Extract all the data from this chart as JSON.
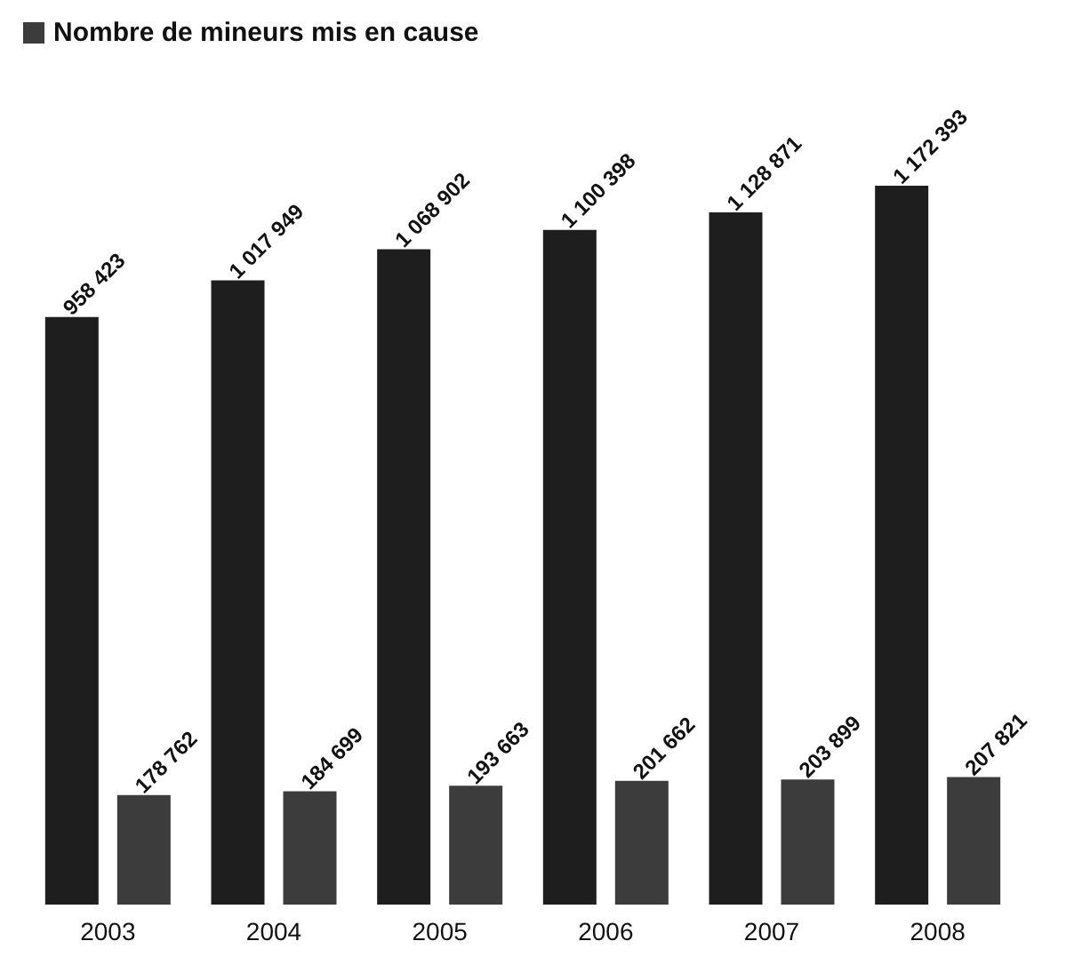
{
  "chart_data": {
    "type": "bar",
    "categories": [
      "2003",
      "2004",
      "2005",
      "2006",
      "2007",
      "2008"
    ],
    "series": [
      {
        "color": "#1e1e1e",
        "values": [
          958423,
          1017949,
          1068902,
          1100398,
          1128871,
          1172393
        ]
      },
      {
        "name": "Nombre de mineurs mis en cause",
        "color": "#3c3c3c",
        "values": [
          178762,
          184699,
          193663,
          201662,
          203899,
          207821
        ]
      }
    ],
    "data_labels": true,
    "legend": "top left"
  }
}
